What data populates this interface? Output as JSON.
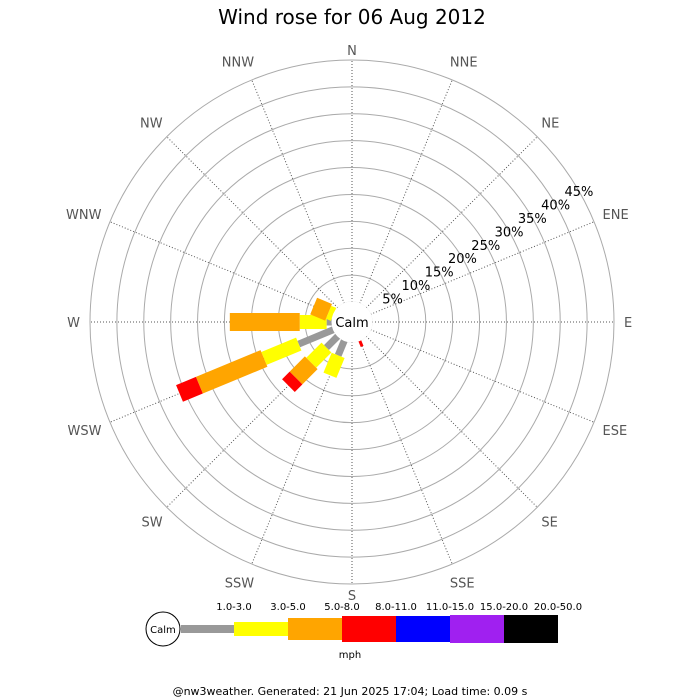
{
  "chart_data": {
    "type": "wind-rose",
    "title": "Wind rose for 06 Aug 2012",
    "directions": [
      "N",
      "NNE",
      "NE",
      "ENE",
      "E",
      "ESE",
      "SE",
      "SSE",
      "S",
      "SSW",
      "SW",
      "WSW",
      "W",
      "WNW",
      "NW",
      "NNW"
    ],
    "ring_labels": [
      "5%",
      "10%",
      "15%",
      "20%",
      "25%",
      "30%",
      "35%",
      "40%",
      "45%"
    ],
    "ring_max_percent": 45,
    "center_label": "Calm",
    "unit": "mph",
    "speed_bins": [
      {
        "label": "1.0-3.0",
        "color": "#999999"
      },
      {
        "label": "3.0-5.0",
        "color": "#ffff00"
      },
      {
        "label": "5.0-8.0",
        "color": "#ffa500"
      },
      {
        "label": "8.0-11.0",
        "color": "#ff0000"
      },
      {
        "label": "11.0-15.0",
        "color": "#0000ff"
      },
      {
        "label": "15.0-20.0",
        "color": "#a020f0"
      },
      {
        "label": "20.0-50.0",
        "color": "#000000"
      }
    ],
    "series": [
      {
        "direction": "SSE",
        "segments": [
          0,
          0,
          0,
          1.2,
          0,
          0,
          0
        ]
      },
      {
        "direction": "SSW",
        "segments": [
          3,
          4,
          0,
          0,
          0,
          0,
          0
        ]
      },
      {
        "direction": "SW",
        "segments": [
          3,
          4,
          4,
          2,
          0,
          0,
          0
        ]
      },
      {
        "direction": "WSW",
        "segments": [
          7,
          7,
          13,
          4,
          0,
          0,
          0
        ]
      },
      {
        "direction": "W",
        "segments": [
          1,
          5,
          13,
          0,
          0,
          0,
          0
        ]
      },
      {
        "direction": "WNW",
        "segments": [
          0,
          1,
          3,
          0,
          0,
          0,
          0
        ]
      }
    ],
    "grid": true
  },
  "footer": "@nw3weather. Generated: 21 Jun 2025 17:04; Load time: 0.09 s"
}
